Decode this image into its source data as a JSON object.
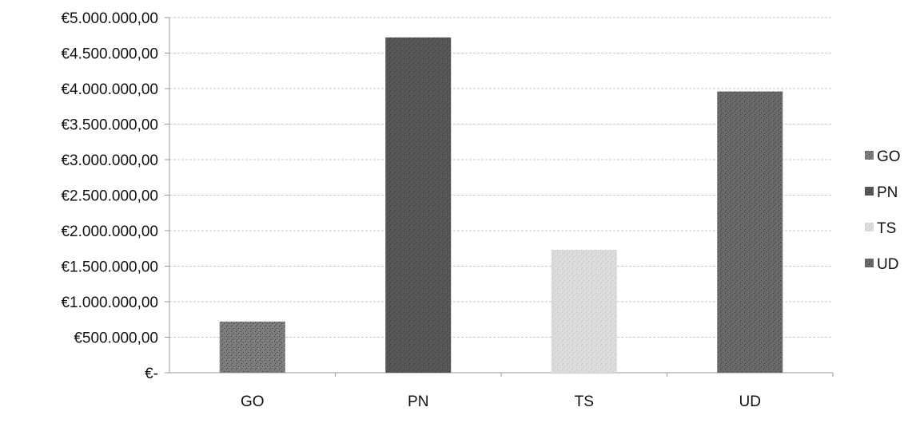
{
  "chart_data": {
    "type": "bar",
    "categories": [
      "GO",
      "PN",
      "TS",
      "UD"
    ],
    "values": [
      720000,
      4720000,
      1730000,
      3960000
    ],
    "ylim": [
      0,
      5000000
    ],
    "yticks": [
      0,
      500000,
      1000000,
      1500000,
      2000000,
      2500000,
      3000000,
      3500000,
      4000000,
      4500000,
      5000000
    ],
    "ytick_labels": [
      "€-",
      "€500.000,00",
      "€1.000.000,00",
      "€1.500.000,00",
      "€2.000.000,00",
      "€2.500.000,00",
      "€3.000.000,00",
      "€3.500.000,00",
      "€4.000.000,00",
      "€4.500.000,00",
      "€5.000.000,00"
    ],
    "grid": true,
    "legend": {
      "placement": "right",
      "entries": [
        "GO",
        "PN",
        "TS",
        "UD"
      ]
    },
    "colors": [
      "#7d7d7d",
      "#575757",
      "#dcdcdc",
      "#6a6a6a"
    ],
    "title": "",
    "xlabel": "",
    "ylabel": ""
  }
}
